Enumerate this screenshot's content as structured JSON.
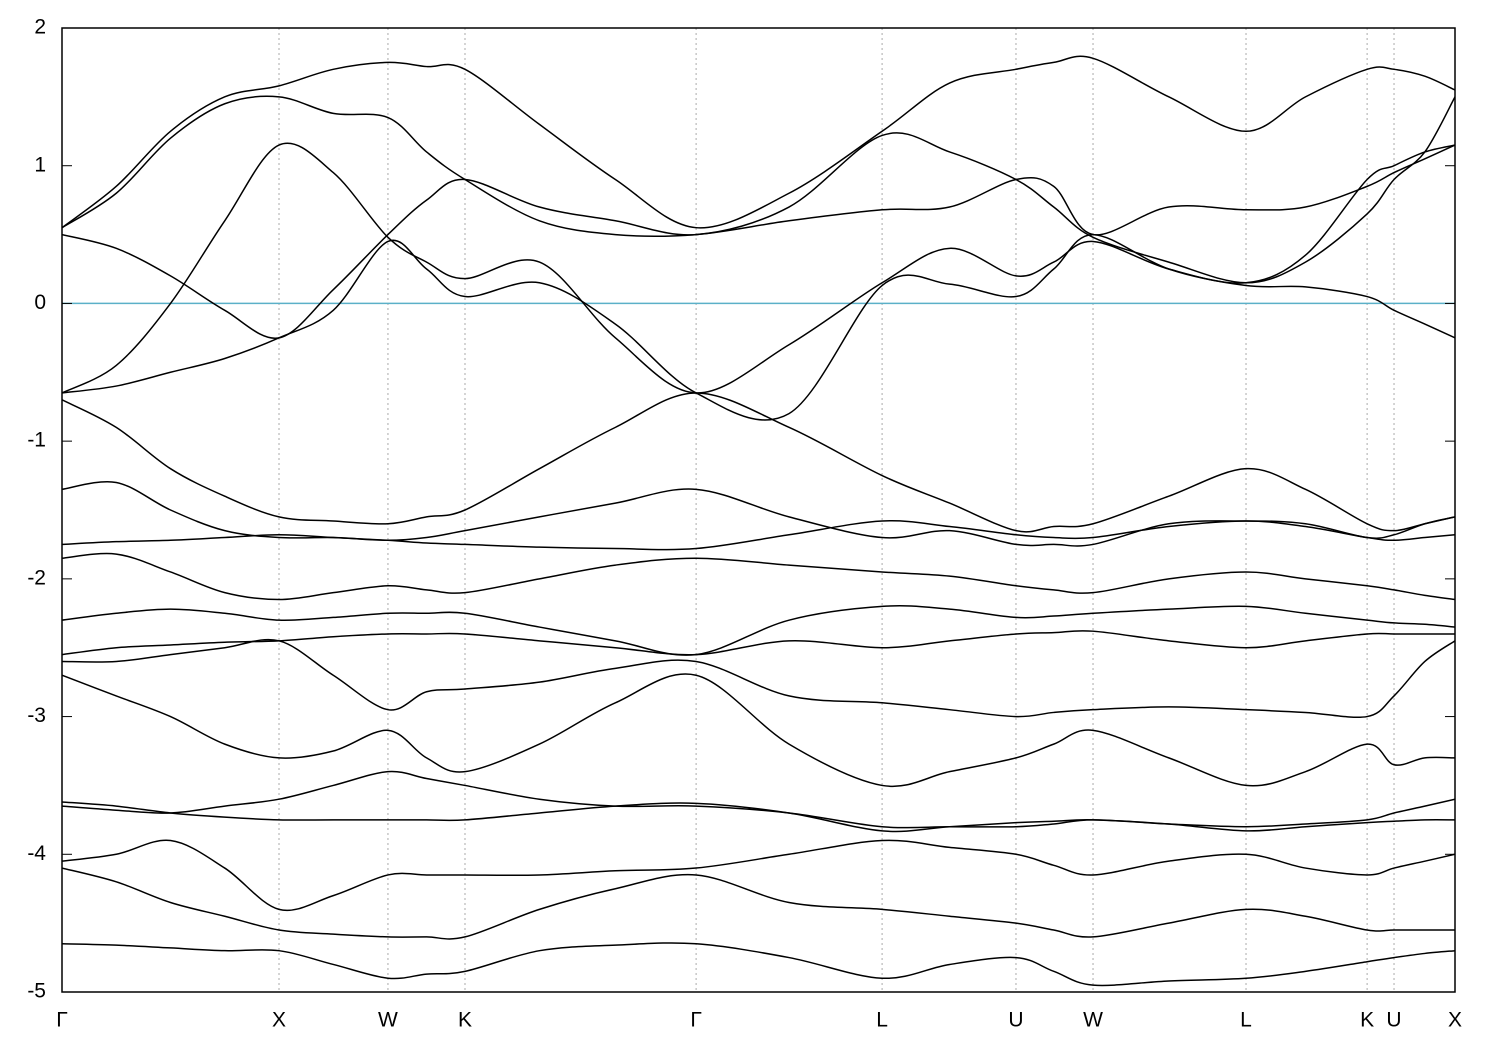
{
  "chart_data": {
    "type": "line",
    "x": [
      0,
      0.25,
      0.5,
      0.75,
      1,
      1.25,
      1.502,
      1.68,
      1.857,
      2.2,
      2.55,
      2.922,
      3.35,
      3.779,
      4.09,
      4.396,
      4.57,
      4.751,
      5.1,
      5.456,
      5.73,
      6.014,
      6.138,
      6.28,
      6.419
    ],
    "color": "#000000",
    "series": [
      {
        "values": [
          -0.65,
          -0.45,
          0.0,
          0.6,
          1.15,
          0.95,
          0.48,
          0.3,
          0.18,
          0.3,
          -0.25,
          -0.65,
          -0.3,
          0.15,
          0.4,
          0.2,
          0.3,
          0.45,
          0.25,
          0.15,
          0.35,
          0.9,
          1.0,
          1.1,
          1.15
        ]
      },
      {
        "values": [
          -0.65,
          -0.6,
          -0.5,
          -0.4,
          -0.25,
          -0.05,
          0.45,
          0.25,
          0.05,
          0.15,
          -0.15,
          -0.65,
          -0.8,
          0.13,
          0.14,
          0.05,
          0.25,
          0.5,
          0.25,
          0.13,
          0.12,
          0.05,
          -0.05,
          -0.15,
          -0.25
        ]
      },
      {
        "values": [
          0.5,
          0.4,
          0.2,
          -0.05,
          -0.25,
          0.1,
          0.5,
          0.75,
          0.9,
          0.7,
          0.6,
          0.5,
          0.7,
          1.22,
          1.1,
          0.9,
          0.7,
          0.48,
          0.3,
          0.15,
          0.3,
          0.65,
          0.9,
          1.1,
          1.5
        ]
      },
      {
        "values": [
          0.55,
          0.8,
          1.2,
          1.45,
          1.5,
          1.38,
          1.35,
          1.1,
          0.9,
          0.6,
          0.5,
          0.5,
          0.6,
          0.68,
          0.7,
          0.9,
          0.85,
          0.5,
          0.7,
          0.68,
          0.7,
          0.85,
          0.95,
          1.05,
          1.15
        ]
      },
      {
        "values": [
          0.55,
          0.85,
          1.25,
          1.5,
          1.58,
          1.7,
          1.75,
          1.72,
          1.7,
          1.3,
          0.9,
          0.55,
          0.8,
          1.25,
          1.6,
          1.7,
          1.75,
          1.78,
          1.5,
          1.25,
          1.5,
          1.7,
          1.7,
          1.65,
          1.55
        ]
      },
      {
        "values": [
          -1.35,
          -1.3,
          -1.5,
          -1.65,
          -1.7,
          -1.7,
          -1.72,
          -1.7,
          -1.65,
          -1.55,
          -1.45,
          -1.35,
          -1.55,
          -1.7,
          -1.65,
          -1.75,
          -1.75,
          -1.75,
          -1.6,
          -1.58,
          -1.6,
          -1.7,
          -1.68,
          -1.6,
          -1.55
        ]
      },
      {
        "values": [
          -0.7,
          -0.9,
          -1.2,
          -1.4,
          -1.55,
          -1.58,
          -1.6,
          -1.55,
          -1.5,
          -1.2,
          -0.9,
          -0.65,
          -0.9,
          -1.25,
          -1.45,
          -1.65,
          -1.62,
          -1.6,
          -1.4,
          -1.2,
          -1.35,
          -1.6,
          -1.65,
          -1.6,
          -1.55
        ]
      },
      {
        "values": [
          -1.75,
          -1.73,
          -1.72,
          -1.7,
          -1.68,
          -1.7,
          -1.72,
          -1.74,
          -1.75,
          -1.77,
          -1.78,
          -1.78,
          -1.68,
          -1.58,
          -1.62,
          -1.68,
          -1.7,
          -1.7,
          -1.62,
          -1.58,
          -1.62,
          -1.7,
          -1.72,
          -1.7,
          -1.68
        ]
      },
      {
        "values": [
          -1.85,
          -1.82,
          -1.95,
          -2.1,
          -2.15,
          -2.1,
          -2.05,
          -2.08,
          -2.1,
          -2.0,
          -1.9,
          -1.85,
          -1.9,
          -1.95,
          -1.98,
          -2.05,
          -2.08,
          -2.1,
          -2.0,
          -1.95,
          -2.0,
          -2.05,
          -2.08,
          -2.12,
          -2.15
        ]
      },
      {
        "values": [
          -2.3,
          -2.25,
          -2.22,
          -2.25,
          -2.3,
          -2.28,
          -2.25,
          -2.25,
          -2.25,
          -2.35,
          -2.45,
          -2.55,
          -2.3,
          -2.2,
          -2.22,
          -2.28,
          -2.27,
          -2.25,
          -2.22,
          -2.2,
          -2.25,
          -2.3,
          -2.32,
          -2.33,
          -2.35
        ]
      },
      {
        "values": [
          -2.55,
          -2.5,
          -2.48,
          -2.46,
          -2.45,
          -2.42,
          -2.4,
          -2.4,
          -2.4,
          -2.45,
          -2.5,
          -2.55,
          -2.45,
          -2.5,
          -2.45,
          -2.4,
          -2.39,
          -2.38,
          -2.45,
          -2.5,
          -2.45,
          -2.4,
          -2.4,
          -2.4,
          -2.4
        ]
      },
      {
        "values": [
          -2.6,
          -2.6,
          -2.55,
          -2.5,
          -2.45,
          -2.7,
          -2.95,
          -2.82,
          -2.8,
          -2.75,
          -2.65,
          -2.6,
          -2.85,
          -2.9,
          -2.95,
          -3.0,
          -2.97,
          -2.95,
          -2.93,
          -2.95,
          -2.97,
          -3.0,
          -2.85,
          -2.6,
          -2.45
        ]
      },
      {
        "values": [
          -2.7,
          -2.85,
          -3.0,
          -3.2,
          -3.3,
          -3.25,
          -3.1,
          -3.3,
          -3.4,
          -3.2,
          -2.9,
          -2.7,
          -3.2,
          -3.5,
          -3.4,
          -3.3,
          -3.2,
          -3.1,
          -3.3,
          -3.5,
          -3.4,
          -3.2,
          -3.35,
          -3.3,
          -3.3
        ]
      },
      {
        "values": [
          -3.65,
          -3.68,
          -3.7,
          -3.65,
          -3.6,
          -3.5,
          -3.4,
          -3.45,
          -3.5,
          -3.6,
          -3.65,
          -3.65,
          -3.7,
          -3.8,
          -3.8,
          -3.8,
          -3.78,
          -3.75,
          -3.78,
          -3.8,
          -3.78,
          -3.75,
          -3.7,
          -3.65,
          -3.6
        ]
      },
      {
        "values": [
          -3.62,
          -3.65,
          -3.7,
          -3.73,
          -3.75,
          -3.75,
          -3.75,
          -3.75,
          -3.75,
          -3.7,
          -3.65,
          -3.63,
          -3.7,
          -3.83,
          -3.8,
          -3.77,
          -3.76,
          -3.75,
          -3.78,
          -3.83,
          -3.8,
          -3.77,
          -3.76,
          -3.75,
          -3.75
        ]
      },
      {
        "values": [
          -4.05,
          -4.0,
          -3.9,
          -4.1,
          -4.4,
          -4.3,
          -4.15,
          -4.15,
          -4.15,
          -4.15,
          -4.12,
          -4.1,
          -4.0,
          -3.9,
          -3.95,
          -4.0,
          -4.08,
          -4.15,
          -4.05,
          -4.0,
          -4.1,
          -4.15,
          -4.1,
          -4.05,
          -4.0
        ]
      },
      {
        "values": [
          -4.1,
          -4.2,
          -4.35,
          -4.45,
          -4.55,
          -4.58,
          -4.6,
          -4.6,
          -4.6,
          -4.4,
          -4.25,
          -4.15,
          -4.35,
          -4.4,
          -4.45,
          -4.5,
          -4.55,
          -4.6,
          -4.5,
          -4.4,
          -4.45,
          -4.55,
          -4.55,
          -4.55,
          -4.55
        ]
      },
      {
        "values": [
          -4.65,
          -4.66,
          -4.68,
          -4.7,
          -4.7,
          -4.8,
          -4.9,
          -4.87,
          -4.85,
          -4.7,
          -4.66,
          -4.65,
          -4.75,
          -4.9,
          -4.8,
          -4.75,
          -4.85,
          -4.95,
          -4.92,
          -4.9,
          -4.85,
          -4.78,
          -4.75,
          -4.72,
          -4.7
        ]
      }
    ],
    "xlim": [
      0,
      6.419
    ],
    "xticks": [
      {
        "value": 0,
        "label": "Γ"
      },
      {
        "value": 1,
        "label": "X"
      },
      {
        "value": 1.502,
        "label": "W"
      },
      {
        "value": 1.857,
        "label": "K"
      },
      {
        "value": 2.922,
        "label": "Γ"
      },
      {
        "value": 3.779,
        "label": "L"
      },
      {
        "value": 4.396,
        "label": "U"
      },
      {
        "value": 4.751,
        "label": "W"
      },
      {
        "value": 5.456,
        "label": "L"
      },
      {
        "value": 6.014,
        "label": "K"
      },
      {
        "value": 6.138,
        "label": "U"
      },
      {
        "value": 6.419,
        "label": "X"
      }
    ],
    "ylim": [
      -5,
      2
    ],
    "yticks": [
      -5,
      -4,
      -3,
      -2,
      -1,
      0,
      1,
      2
    ],
    "grid": "x",
    "fermi_level": {
      "value": 0,
      "color": "#5bb0c8"
    }
  }
}
